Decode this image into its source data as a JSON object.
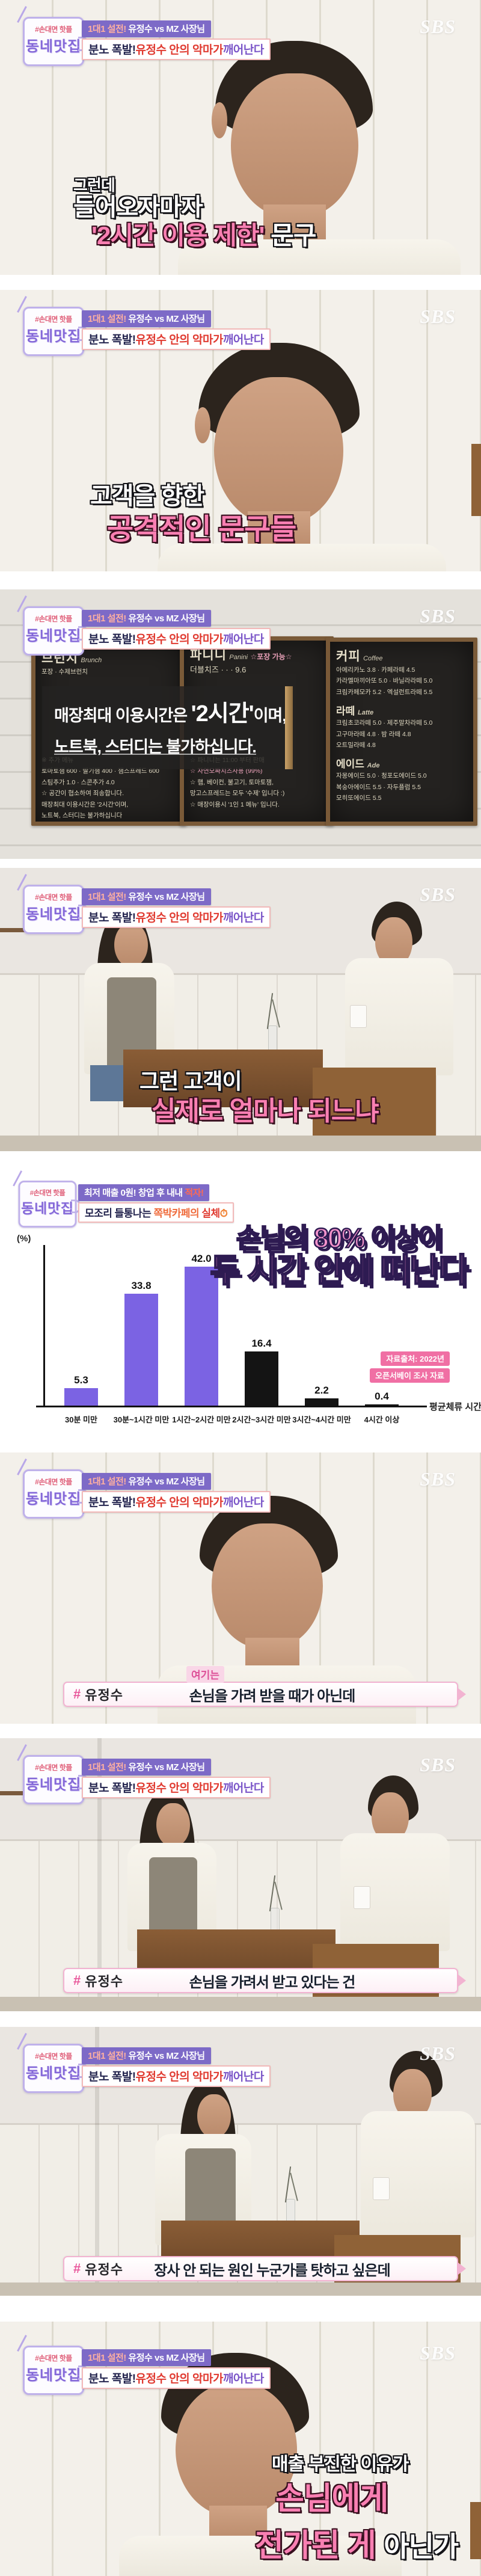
{
  "brand": {
    "name": "SBS"
  },
  "logo": {
    "hashtag": "#손대면 핫플",
    "title": "동네맛집"
  },
  "header": {
    "top_highlight": "1대1 설전!",
    "top_rest": "유정수 vs MZ 사장님",
    "bottom_dark": "분노 폭발!",
    "bottom_red": "유정수 안의 악마가",
    "bottom_purple": "깨어난다"
  },
  "panel1": {
    "cap_small": "그런데",
    "cap_line1": "들어오자마자",
    "cap_line2_pink": "'2시간 이용 제한'",
    "cap_line2_white": "문구"
  },
  "panel2": {
    "cap_line1": "고객을 향한",
    "cap_line2": "공격적인 문구들"
  },
  "panel3": {
    "overlay": {
      "line1_pre": "매장최대 이용시간은 ",
      "line1_big": "'2시간'",
      "line1_post": "이며,",
      "line2": "노트북, 스터디는 불가하십니다."
    },
    "board_left": {
      "title": "브런치",
      "subtitle": "Brunch",
      "top_line": "포장 · 수제브런치",
      "lines": [
        "※ 추가 메뉴",
        "토마토잼 600 · 딸기잼 400 · 잼스프레드 600",
        "스팀추가 1.0 · 스콘추가 4.0",
        "☆ 공간이 협소하여 죄송합니다.",
        "매장최대 이용시간은 '2시간'이며,",
        "노트북, 스터디는 불가하십니다"
      ]
    },
    "board_center": {
      "title": "파니니",
      "subtitle": "Panini",
      "tag": "☆포장 가능☆",
      "top_line": "더블치즈 · · ·  9.6",
      "lines": [
        "☆ 파니니는 11:00 부터 판매",
        "☆ 자연모짜치즈사용 (99%)",
        "☆ 햄, 베이컨, 불고기, 토마토잼,",
        "망고스프레드는 모두 '수제' 입니다 :)",
        "☆ 매장이용시 '1인 1 메뉴' 입니다."
      ]
    },
    "board_right": {
      "title": "커피",
      "subtitle": "Coffee",
      "coffee": [
        "아메리카노 3.8 · 카페라떼 4.5",
        "카라멜마끼아또 5.0 · 바닐라라떼 5.0",
        "크림카페모카 5.2 · 엑설런트라떼 5.5"
      ],
      "latte_title": "라떼",
      "latte_sub": "Latte",
      "latte": [
        "크림초코라떼 5.0 · 제주말차라떼 5.0",
        "고구마라떼 4.8 · 밤 라떼 4.8",
        "오트밀라떼 4.8"
      ],
      "ade_title": "에이드",
      "ade_sub": "Ade",
      "ade": [
        "자몽에이드 5.0 · 청포도에이드 5.0",
        "복숭아에이드 5.5 · 자두플럼 5.5",
        "모히또에이드 5.5"
      ]
    }
  },
  "panel4": {
    "cap_line1": "그런 고객이",
    "cap_line2": "실제로 얼마나 되느냐"
  },
  "chart_panel": {
    "hdr1_white": "최저 매출 0원! 창업 후 내내 ",
    "hdr1_red": "적자!",
    "hdr2_dark": "모조리 들통나는 ",
    "hdr2_orange": "쪽박카페의 ",
    "hdr2_red": "실체",
    "hdr2_icon": "⏱",
    "title_line1": "손님의 80% 이상이",
    "title_line2": "두 시간 안에 떠난다",
    "unit": "(%)",
    "x_label": "평균체류 시간",
    "source_line1": "자료출처: 2022년",
    "source_line2": "오픈서베이 조사 자료"
  },
  "chart_data": {
    "type": "bar",
    "title": "손님의 80% 이상이 두 시간 안에 떠난다",
    "categories": [
      "30분 미만",
      "30분~1시간 미만",
      "1시간~2시간 미만",
      "2시간~3시간 미만",
      "3시간~4시간 미만",
      "4시간 이상"
    ],
    "values": [
      5.3,
      33.8,
      42.0,
      16.4,
      2.2,
      0.4
    ],
    "bar_colors": [
      "#7b63e3",
      "#7b63e3",
      "#7b63e3",
      "#141414",
      "#141414",
      "#141414"
    ],
    "xlabel": "평균체류 시간",
    "ylabel": "%",
    "ylim": [
      0,
      45
    ],
    "legend_position": "none",
    "grid": false,
    "source": "자료출처: 2022년 오픈서베이 조사 자료"
  },
  "panel6": {
    "tag": "여기는",
    "hash": "#",
    "speaker": "유정수",
    "text": "손님을 가려 받을 때가 아닌데"
  },
  "panel7": {
    "hash": "#",
    "speaker": "유정수",
    "text": "손님을 가려서 받고 있다는 건"
  },
  "panel8": {
    "hash": "#",
    "speaker": "유정수",
    "text": "장사 안 되는 원인 누군가를 탓하고 싶은데"
  },
  "panel9": {
    "cap_line1": "매출 부진한 이유가",
    "cap_line2": "손님에게",
    "cap_line3_pink": "전가된 게",
    "cap_line3_white": "아닌가"
  }
}
